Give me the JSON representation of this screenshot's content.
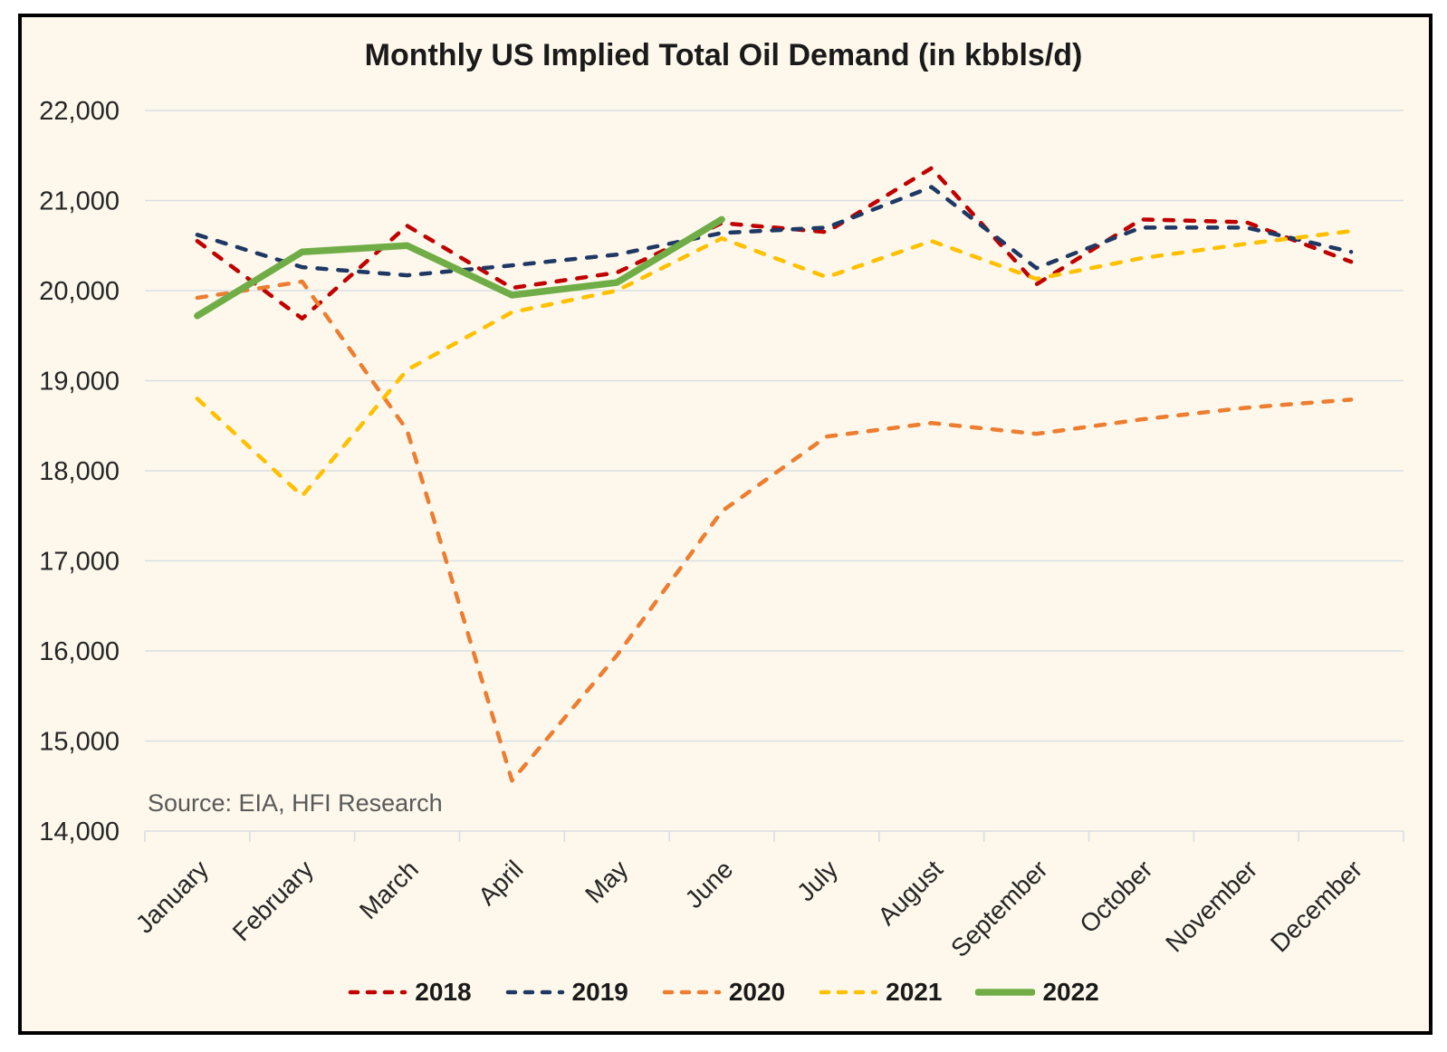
{
  "chart": {
    "title": "Monthly US Implied Total Oil Demand (in kbbls/d)",
    "source_note": "Source: EIA, HFI Research"
  },
  "colors": {
    "frame_background": "#FDF8EB",
    "frame_border": "#000000",
    "gridline": "#D9DDE6",
    "axis_text": "#262626",
    "title_text": "#1A1A1A",
    "source_text": "#595959",
    "legend_text": "#1A1A1A"
  },
  "chart_data": {
    "type": "line",
    "title": "Monthly US Implied Total Oil Demand (in kbbls/d)",
    "categories": [
      "January",
      "February",
      "March",
      "April",
      "May",
      "June",
      "July",
      "August",
      "September",
      "October",
      "November",
      "December"
    ],
    "series": [
      {
        "name": "2018",
        "color": "#C00000",
        "style": "dashed",
        "values": [
          20550,
          19690,
          20720,
          20030,
          20200,
          20750,
          20650,
          21360,
          20070,
          20790,
          20760,
          20320
        ]
      },
      {
        "name": "2019",
        "color": "#1F3864",
        "style": "dashed",
        "values": [
          20620,
          20260,
          20170,
          20280,
          20400,
          20640,
          20700,
          21150,
          20250,
          20700,
          20700,
          20430
        ]
      },
      {
        "name": "2020",
        "color": "#ED7D31",
        "style": "dashed",
        "values": [
          19920,
          20100,
          18450,
          14560,
          15950,
          17550,
          18380,
          18530,
          18410,
          18570,
          18700,
          18790
        ]
      },
      {
        "name": "2021",
        "color": "#FFC000",
        "style": "dashed",
        "values": [
          18800,
          17720,
          19120,
          19760,
          20000,
          20580,
          20150,
          20550,
          20130,
          20360,
          20520,
          20660
        ]
      },
      {
        "name": "2022",
        "color": "#70AD47",
        "style": "solid",
        "values": [
          19720,
          20430,
          20500,
          19950,
          20090,
          20790,
          null,
          null,
          null,
          null,
          null,
          null
        ]
      }
    ],
    "ylim": [
      14000,
      22000
    ],
    "y_tick_labels": [
      "22,000",
      "21,000",
      "20,000",
      "19,000",
      "18,000",
      "17,000",
      "16,000",
      "15,000",
      "14,000"
    ],
    "grid": true,
    "xlabel": "",
    "ylabel": "",
    "legend_position": "bottom"
  }
}
